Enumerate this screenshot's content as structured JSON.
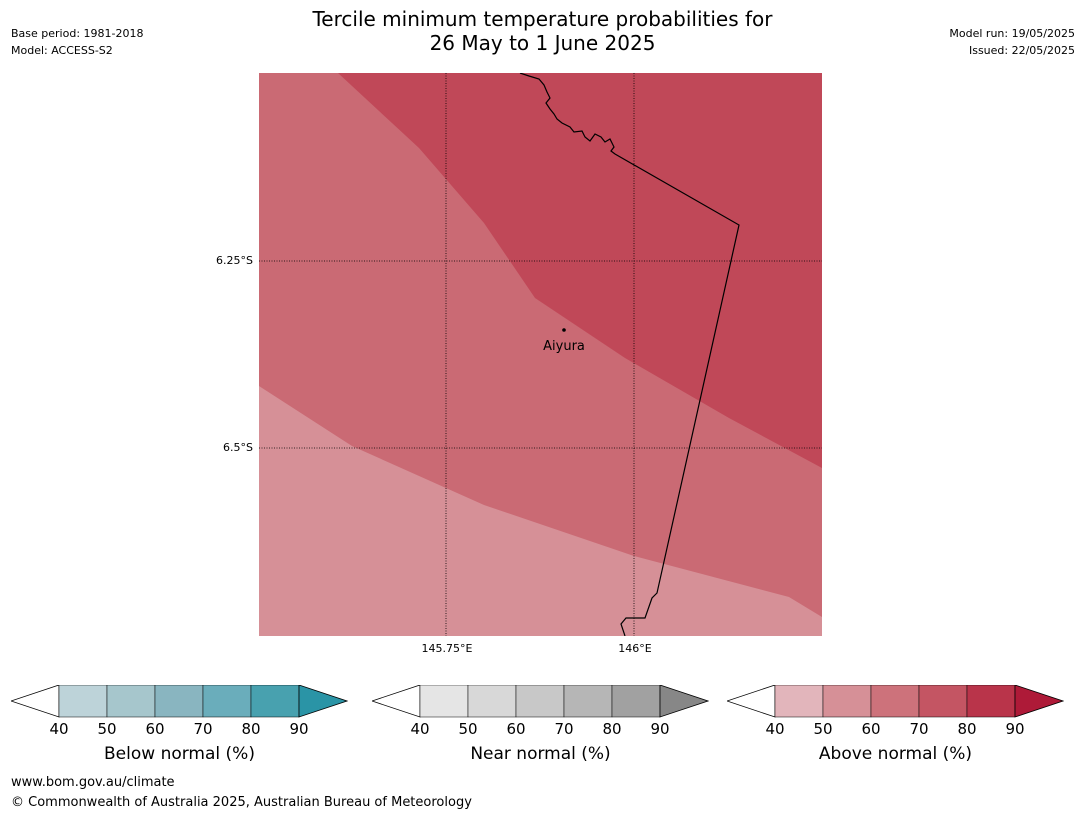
{
  "header": {
    "title_line1": "Tercile minimum temperature probabilities for",
    "title_line2": "26 May to 1 June 2025",
    "base_period": "Base period: 1981-2018",
    "model": "Model: ACCESS-S2",
    "model_run": "Model run: 19/05/2025",
    "issued": "Issued: 22/05/2025"
  },
  "map": {
    "lat_labels": [
      "6.25°S",
      "6.5°S"
    ],
    "lon_labels": [
      "145.75°E",
      "146°E"
    ],
    "place_label": "Aiyura",
    "colors": {
      "band_50_60": "#d69097",
      "band_60_70": "#ca6a74",
      "band_70_80": "#c04858"
    }
  },
  "colorbars": [
    {
      "label": "Below normal (%)",
      "ticks": [
        "40",
        "50",
        "60",
        "70",
        "80",
        "90"
      ],
      "colors": [
        "#bdd3d9",
        "#a6c6cc",
        "#89b5c0",
        "#6aadbb",
        "#48a1af",
        "#2a94a6"
      ]
    },
    {
      "label": "Near normal (%)",
      "ticks": [
        "40",
        "50",
        "60",
        "70",
        "80",
        "90"
      ],
      "colors": [
        "#e5e5e5",
        "#d8d8d8",
        "#c8c8c8",
        "#b6b6b6",
        "#a1a1a1",
        "#878787"
      ]
    },
    {
      "label": "Above normal (%)",
      "ticks": [
        "40",
        "50",
        "60",
        "70",
        "80",
        "90"
      ],
      "colors": [
        "#e2b5bb",
        "#d69097",
        "#cd727b",
        "#c45563",
        "#b9344a",
        "#ae1a38"
      ]
    }
  ],
  "footer": {
    "url": "www.bom.gov.au/climate",
    "copyright": "© Commonwealth of Australia 2025, Australian Bureau of Meteorology"
  }
}
